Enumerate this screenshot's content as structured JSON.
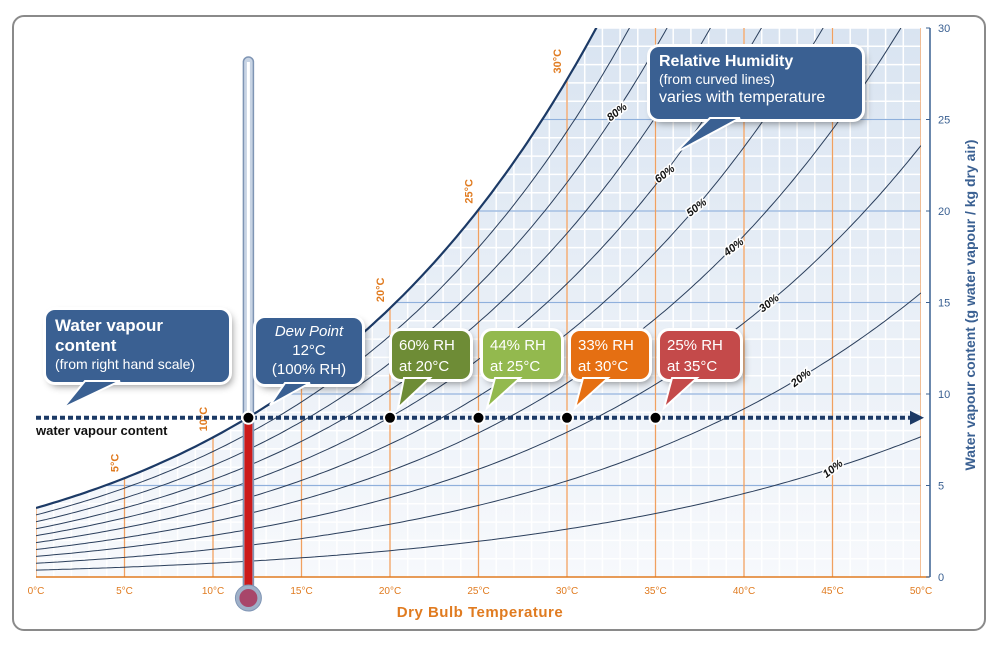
{
  "chart_data": {
    "type": "line",
    "xlabel": "Dry Bulb Temperature",
    "ylabel": "Water vapour content (g water vapour / kg dry air)",
    "xlim": [
      0,
      50
    ],
    "ylim": [
      0,
      30
    ],
    "x_ticks": [
      "0°C",
      "5°C",
      "10°C",
      "15°C",
      "20°C",
      "25°C",
      "30°C",
      "35°C",
      "40°C",
      "45°C",
      "50°C"
    ],
    "y_ticks": [
      "0",
      "5",
      "10",
      "15",
      "20",
      "25",
      "30"
    ],
    "grid": true,
    "rh_levels": [
      10,
      20,
      30,
      40,
      50,
      60,
      70,
      80,
      90,
      100
    ],
    "rh_labels": [
      {
        "rh": 80,
        "text": "80%"
      },
      {
        "rh": 60,
        "text": "60%"
      },
      {
        "rh": 50,
        "text": "50%"
      },
      {
        "rh": 40,
        "text": "40%"
      },
      {
        "rh": 30,
        "text": "30%"
      },
      {
        "rh": 20,
        "text": "20%"
      },
      {
        "rh": 10,
        "text": "10%"
      }
    ],
    "saturation_labels": [
      {
        "t": 5,
        "text": "5°C"
      },
      {
        "t": 10,
        "text": "10°C"
      },
      {
        "t": 20,
        "text": "20°C"
      },
      {
        "t": 25,
        "text": "25°C"
      },
      {
        "t": 30,
        "text": "30°C"
      }
    ],
    "water_vapour_content": 8.7,
    "points": [
      {
        "t": 12,
        "rh": 100
      },
      {
        "t": 20,
        "rh": 60
      },
      {
        "t": 25,
        "rh": 44
      },
      {
        "t": 30,
        "rh": 33
      },
      {
        "t": 35,
        "rh": 25
      }
    ],
    "thermometer_temp": 12
  },
  "colors": {
    "axis_blue": "#3a6092",
    "temp_orange": "#e07b20",
    "green_dark": "#6e8c36",
    "green_light": "#93b94e",
    "orange": "#e56f12",
    "red": "#c44a4a",
    "thermo_red": "#cc1a1a"
  },
  "labels": {
    "wvc_line": "water vapour content",
    "callout_wvc_title": "Water vapour content",
    "callout_wvc_sub": "(from right hand scale)",
    "callout_dew_title": "Dew Point",
    "callout_dew_temp": "12°C",
    "callout_dew_rh": "(100% RH)",
    "callout_rh_title": "Relative Humidity",
    "callout_rh_sub": "(from curved lines)",
    "callout_rh_sub2": "varies with temperature",
    "rh_boxes": [
      {
        "l1": "60% RH",
        "l2": "at 20°C"
      },
      {
        "l1": "44% RH",
        "l2": "at 25°C"
      },
      {
        "l1": "33% RH",
        "l2": "at 30°C"
      },
      {
        "l1": "25% RH",
        "l2": "at 35°C"
      }
    ]
  }
}
